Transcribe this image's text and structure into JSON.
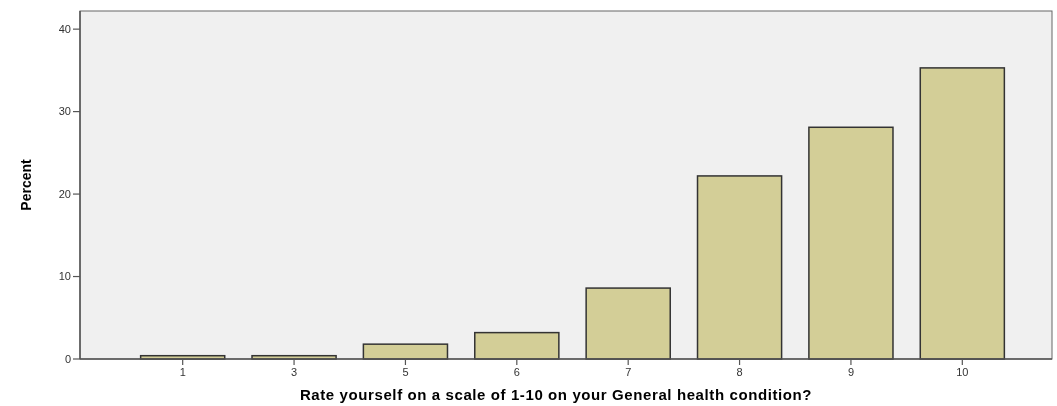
{
  "chart_data": {
    "type": "bar",
    "xlabel": "Rate yourself on a scale of 1-10 on your General health condition?",
    "ylabel": "Percent",
    "categories": [
      "1",
      "3",
      "5",
      "6",
      "7",
      "8",
      "9",
      "10"
    ],
    "values": [
      0.4,
      0.4,
      1.8,
      3.2,
      8.6,
      22.2,
      28.1,
      35.3
    ],
    "color": "#d3ce97",
    "ylim": [
      0,
      42.2
    ],
    "yticks": [
      0,
      10,
      20,
      30,
      40
    ],
    "grid": false
  }
}
